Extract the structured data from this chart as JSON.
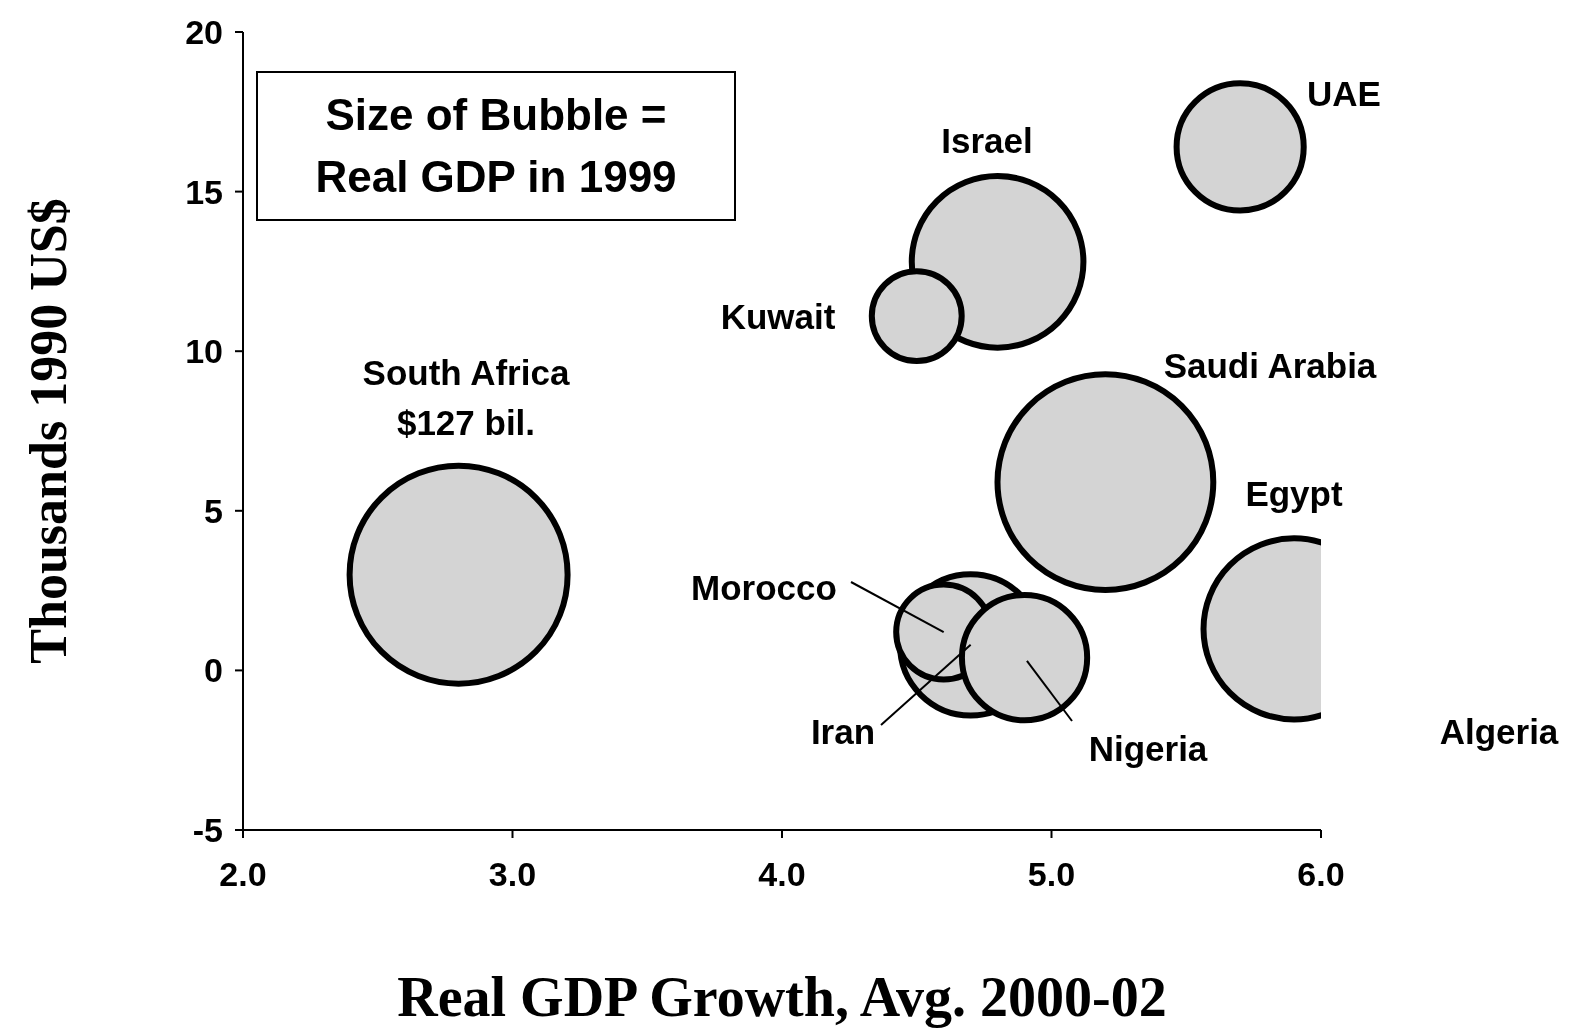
{
  "chart_data": {
    "type": "bubble",
    "xlabel": "Real GDP Growth, Avg. 2000-02",
    "ylabel": "Thousands 1990 US$",
    "series": [
      {
        "color": "#d4d4d4",
        "x": [
          2.8,
          4.8,
          4.5,
          5.7,
          5.2,
          5.9,
          4.7,
          4.6,
          4.9
        ],
        "values": [
          3.0,
          12.8,
          11.1,
          16.4,
          5.9,
          1.3,
          0.8,
          1.2,
          0.4
        ],
        "sizes": [
          1,
          0.62,
          0.17,
          0.34,
          0.98,
          0.69,
          0.42,
          0.19,
          0.33
        ]
      }
    ],
    "xlim": [
      2,
      6
    ],
    "xticks": [
      {
        "value": 2,
        "label": "2.0"
      },
      {
        "value": 3,
        "label": "3.0"
      },
      {
        "value": 4,
        "label": "4.0"
      },
      {
        "value": 5,
        "label": "5.0"
      },
      {
        "value": 6,
        "label": "6.0"
      }
    ],
    "ylim": [
      -5,
      20
    ],
    "yticks": [
      -5,
      0,
      5,
      10,
      15,
      20
    ],
    "annotations": [
      "Size of Bubble = Real GDP in 1999",
      "South Africa",
      "$127 bil.",
      "UAE",
      "Israel",
      "Kuwait",
      "Saudi Arabia",
      "Egypt",
      {
        "text": "Morocco",
        "x": 4.6,
        "y": 1.2
      },
      {
        "text": "Iran",
        "x": 4.7,
        "y": 0.8
      },
      {
        "text": "Nigeria",
        "x": 4.9,
        "y": 0.4
      },
      "Algeria"
    ]
  }
}
